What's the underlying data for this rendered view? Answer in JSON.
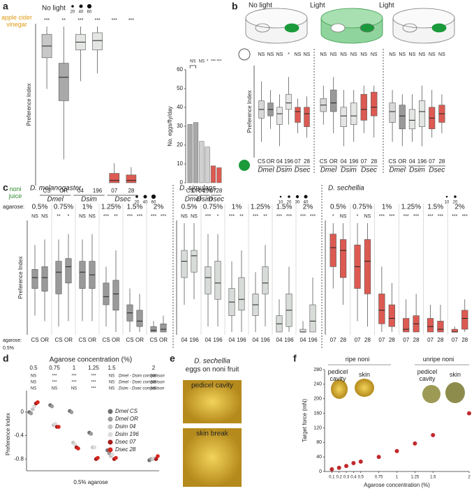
{
  "chart_data": [
    {
      "type": "box",
      "panel": "a",
      "ylabel": "Preference Index",
      "top_label": "apple cider vinegar",
      "bottom_label": "noni juice",
      "size_legend": [
        20,
        40,
        60
      ],
      "groups": [
        "Dmel",
        "Dsim",
        "Dsec"
      ],
      "colors": [
        "#c8c8c8",
        "#a9a9a9",
        "#e3e6e3",
        "#e3e6e3",
        "#dc5a52",
        "#dc5a52"
      ],
      "ylim": [
        -1,
        1
      ],
      "panels": [
        {
          "title": "No light",
          "categories": [
            "CS",
            "OR",
            "04",
            "196",
            "07",
            "28"
          ],
          "significance": [
            "***",
            "**",
            "***",
            "***",
            "***",
            "***"
          ],
          "low": [
            0.2,
            -0.7,
            0.3,
            0.4,
            -1,
            -1
          ],
          "q1": [
            0.6,
            0.05,
            0.7,
            0.7,
            -1,
            -1
          ],
          "median": [
            0.75,
            0.35,
            0.8,
            0.82,
            -0.97,
            -0.97
          ],
          "q3": [
            0.9,
            0.53,
            0.9,
            0.92,
            -0.88,
            -0.9
          ],
          "high": [
            1,
            1,
            1,
            1,
            -0.75,
            -0.8
          ]
        }
      ]
    },
    {
      "type": "bar",
      "ylabel": "No. eggs/fly/day",
      "categories": [
        "CS",
        "OR",
        "04",
        "196",
        "07",
        "28"
      ],
      "groups": [
        "Dmel",
        "Dsim",
        "Dsec"
      ],
      "values": [
        31,
        32,
        22,
        19,
        9,
        8
      ],
      "colors": [
        "#a9a9a9",
        "#a9a9a9",
        "#d0d0d0",
        "#d0d0d0",
        "#dc5a52",
        "#dc5a52"
      ],
      "ylim": [
        0,
        60
      ],
      "yticks": [
        0,
        10,
        20,
        30,
        40,
        50,
        60
      ],
      "significance": [
        "NS",
        "NS",
        "*",
        "***",
        "***"
      ]
    },
    {
      "type": "box",
      "panel": "b",
      "ylabel": "Preference Index",
      "groups": [
        "Dmel",
        "Dsim",
        "Dsec"
      ],
      "colors": [
        "#d8d8d8",
        "#9a9a9a",
        "#e3e6e3",
        "#e3e6e3",
        "#dc5a52",
        "#dc5a52"
      ],
      "ylim": [
        -1,
        1
      ],
      "panels": [
        {
          "title": "No light",
          "categories": [
            "CS",
            "OR",
            "04",
            "196",
            "07",
            "28"
          ],
          "significance": [
            "NS",
            "NS",
            "NS",
            "*",
            "NS",
            "NS"
          ],
          "low": [
            -0.7,
            -0.4,
            -0.8,
            -0.3,
            -0.5,
            -0.6
          ],
          "q1": [
            -0.15,
            -0.1,
            -0.3,
            0.05,
            -0.25,
            -0.35
          ],
          "median": [
            0.05,
            0.05,
            -0.05,
            0.2,
            0,
            -0.05
          ],
          "q3": [
            0.25,
            0.2,
            0.1,
            0.4,
            0.1,
            0.1
          ],
          "high": [
            0.7,
            0.5,
            0.4,
            0.8,
            0.3,
            0.35
          ]
        },
        {
          "title": "Light",
          "categories": [
            "CS",
            "OR",
            "04",
            "196",
            "07",
            "28"
          ],
          "significance": [
            "NS",
            "NS",
            "NS",
            "NS",
            "NS",
            "NS"
          ],
          "low": [
            -0.3,
            -0.5,
            -0.8,
            -0.7,
            -0.5,
            -0.6
          ],
          "q1": [
            0,
            0,
            -0.35,
            -0.3,
            -0.2,
            -0.1
          ],
          "median": [
            0.15,
            0.2,
            -0.1,
            -0.1,
            0.05,
            0.1
          ],
          "q3": [
            0.3,
            0.5,
            0.1,
            0.2,
            0.4,
            0.45
          ],
          "high": [
            0.6,
            0.8,
            0.5,
            0.5,
            0.6,
            0.6
          ]
        },
        {
          "title": "Light",
          "categories": [
            "CS",
            "OR",
            "04",
            "196",
            "07",
            "28"
          ],
          "significance": [
            "NS",
            "NS",
            "NS",
            "NS",
            "NS",
            "NS"
          ],
          "low": [
            -0.7,
            -0.8,
            -0.7,
            -0.8,
            -0.6,
            -0.5
          ],
          "q1": [
            -0.25,
            -0.4,
            -0.4,
            -0.35,
            -0.4,
            -0.25
          ],
          "median": [
            0,
            -0.1,
            -0.2,
            0,
            -0.15,
            -0.05
          ],
          "q3": [
            0.2,
            0.15,
            0.05,
            0.25,
            0.1,
            0.15
          ],
          "high": [
            0.5,
            0.4,
            0.4,
            0.6,
            0.5,
            0.4
          ]
        }
      ]
    },
    {
      "type": "box",
      "panel": "c",
      "title": "D. melanogaster",
      "ylabel": "Preference Index",
      "row_label": "agarose:",
      "bottom_note": [
        "agarose:",
        "0.5%"
      ],
      "size_legend": [
        20,
        40,
        60
      ],
      "color": "#9a9a9a",
      "ylim": [
        -1,
        1
      ],
      "panels": [
        {
          "title": "0.5%",
          "categories": [
            "CS",
            "OR"
          ],
          "significance": [
            "NS",
            "NS"
          ],
          "low": [
            -0.7,
            -0.8
          ],
          "q1": [
            -0.2,
            -0.25
          ],
          "median": [
            0,
            0
          ],
          "q3": [
            0.15,
            0.2
          ],
          "high": [
            0.6,
            0.7
          ]
        },
        {
          "title": "0.75%",
          "categories": [
            "CS",
            "OR"
          ],
          "significance": [
            "**",
            "*"
          ],
          "low": [
            -0.9,
            -0.8
          ],
          "q1": [
            -0.3,
            -0.1
          ],
          "median": [
            0.1,
            0.2
          ],
          "q3": [
            0.3,
            0.35
          ],
          "high": [
            0.7,
            0.8
          ]
        },
        {
          "title": "1%",
          "categories": [
            "CS",
            "OR"
          ],
          "significance": [
            "NS",
            "NS"
          ],
          "low": [
            -0.8,
            -0.8
          ],
          "q1": [
            -0.2,
            -0.2
          ],
          "median": [
            0.1,
            0.05
          ],
          "q3": [
            0.3,
            0.3
          ],
          "high": [
            0.7,
            0.8
          ]
        },
        {
          "title": "1.25%",
          "categories": [
            "CS",
            "OR"
          ],
          "significance": [
            "***",
            "**"
          ],
          "low": [
            -0.9,
            -1
          ],
          "q1": [
            -0.5,
            -0.6
          ],
          "median": [
            -0.35,
            -0.3
          ],
          "q3": [
            -0.1,
            -0.05
          ],
          "high": [
            0.2,
            0.5
          ]
        },
        {
          "title": "1.5%",
          "categories": [
            "CS",
            "OR"
          ],
          "significance": [
            "***",
            "***"
          ],
          "low": [
            -1,
            -1
          ],
          "q1": [
            -0.8,
            -0.9
          ],
          "median": [
            -0.65,
            -0.8
          ],
          "q3": [
            -0.5,
            -0.6
          ],
          "high": [
            -0.2,
            -0.3
          ]
        },
        {
          "title": "2%",
          "categories": [
            "CS",
            "OR"
          ],
          "significance": [
            "***",
            "***"
          ],
          "low": [
            -1,
            -1
          ],
          "q1": [
            -1,
            -1
          ],
          "median": [
            -0.97,
            -0.95
          ],
          "q3": [
            -0.9,
            -0.85
          ],
          "high": [
            -0.8,
            -0.7
          ]
        }
      ]
    },
    {
      "type": "box",
      "title": "D. simulans",
      "size_legend": [
        10,
        20,
        30,
        40
      ],
      "color": "#d8dcd8",
      "ylim": [
        -1,
        1
      ],
      "panels": [
        {
          "title": "0.5%",
          "categories": [
            "04",
            "196"
          ],
          "significance": [
            "NS",
            "NS"
          ],
          "low": [
            -0.5,
            -0.4
          ],
          "q1": [
            0,
            0.1
          ],
          "median": [
            0.3,
            0.4
          ],
          "q3": [
            0.5,
            0.5
          ],
          "high": [
            1,
            1
          ]
        },
        {
          "title": "0.75%",
          "categories": [
            "04",
            "196"
          ],
          "significance": [
            "***",
            "*"
          ],
          "low": [
            -0.9,
            -0.9
          ],
          "q1": [
            -0.3,
            -0.4
          ],
          "median": [
            0,
            -0.1
          ],
          "q3": [
            0.2,
            0.3
          ],
          "high": [
            0.8,
            0.8
          ]
        },
        {
          "title": "1%",
          "categories": [
            "04",
            "196"
          ],
          "significance": [
            "***",
            "**"
          ],
          "low": [
            -1,
            -1
          ],
          "q1": [
            -0.7,
            -0.6
          ],
          "median": [
            -0.45,
            -0.4
          ],
          "q3": [
            -0.2,
            0
          ],
          "high": [
            0.3,
            0.5
          ]
        },
        {
          "title": "1.25%",
          "categories": [
            "04",
            "196"
          ],
          "significance": [
            "***",
            "**"
          ],
          "low": [
            -1,
            -0.9
          ],
          "q1": [
            -0.7,
            -0.3
          ],
          "median": [
            -0.5,
            -0.1
          ],
          "q3": [
            -0.3,
            0.2
          ],
          "high": [
            0.1,
            0.6
          ]
        },
        {
          "title": "1.5%",
          "categories": [
            "04",
            "196"
          ],
          "significance": [
            "***",
            "***"
          ],
          "low": [
            -1,
            -1
          ],
          "q1": [
            -1,
            -0.9
          ],
          "median": [
            -0.85,
            -0.6
          ],
          "q3": [
            -0.7,
            -0.3
          ],
          "high": [
            -0.4,
            0.2
          ]
        },
        {
          "title": "2%",
          "categories": [
            "04",
            "196"
          ],
          "significance": [
            "***",
            "***"
          ],
          "low": [
            -1,
            -1
          ],
          "q1": [
            -1,
            -1
          ],
          "median": [
            -1,
            -0.8
          ],
          "q3": [
            -0.95,
            -0.5
          ],
          "high": [
            -0.8,
            0
          ]
        }
      ]
    },
    {
      "type": "box",
      "title": "D. sechellia",
      "size_legend": [
        10,
        20
      ],
      "color": "#dc5a52",
      "ylim": [
        -1,
        1
      ],
      "panels": [
        {
          "title": "0.5%",
          "categories": [
            "07",
            "28"
          ],
          "significance": [
            "*",
            "NS"
          ],
          "low": [
            -0.2,
            -0.5
          ],
          "q1": [
            0.2,
            0
          ],
          "median": [
            0.55,
            0.5
          ],
          "q3": [
            0.8,
            0.7
          ],
          "high": [
            1,
            1
          ]
        },
        {
          "title": "0.75%",
          "categories": [
            "07",
            "28"
          ],
          "significance": [
            "*",
            "NS"
          ],
          "low": [
            -0.8,
            -0.9
          ],
          "q1": [
            -0.2,
            -0.3
          ],
          "median": [
            0.2,
            0.3
          ],
          "q3": [
            0.6,
            0.7
          ],
          "high": [
            1,
            1
          ]
        },
        {
          "title": "1%",
          "categories": [
            "07",
            "28"
          ],
          "significance": [
            "***",
            "***"
          ],
          "low": [
            -1,
            -1
          ],
          "q1": [
            -0.85,
            -0.9
          ],
          "median": [
            -0.6,
            -0.75
          ],
          "q3": [
            -0.3,
            -0.5
          ],
          "high": [
            0.2,
            -0.1
          ]
        },
        {
          "title": "1.25%",
          "categories": [
            "07",
            "28"
          ],
          "significance": [
            "***",
            "***"
          ],
          "low": [
            -1,
            -1
          ],
          "q1": [
            -1,
            -1
          ],
          "median": [
            -0.95,
            -0.85
          ],
          "q3": [
            -0.75,
            -0.7
          ],
          "high": [
            -0.4,
            -0.3
          ]
        },
        {
          "title": "1.5%",
          "categories": [
            "07",
            "28"
          ],
          "significance": [
            "***",
            "***"
          ],
          "low": [
            -1,
            -1
          ],
          "q1": [
            -1,
            -1
          ],
          "median": [
            -0.9,
            -0.95
          ],
          "q3": [
            -0.75,
            -0.8
          ],
          "high": [
            -0.5,
            -0.5
          ]
        },
        {
          "title": "2%",
          "categories": [
            "07",
            "28"
          ],
          "significance": [
            "***",
            "***"
          ],
          "low": [
            -1,
            -1
          ],
          "q1": [
            -1,
            -0.95
          ],
          "median": [
            -1,
            -0.75
          ],
          "q3": [
            -0.95,
            -0.6
          ],
          "high": [
            -0.9,
            -0.4
          ]
        }
      ]
    },
    {
      "type": "dot",
      "panel": "d",
      "xlabel": "Agarose concentration (%)",
      "ylabel": "Preference Index",
      "note": "0.5% agarose",
      "categories": [
        "0.5",
        "0.75",
        "1",
        "1.25",
        "1.5",
        "2"
      ],
      "ylim": [
        -1,
        0.25
      ],
      "yticks": [
        0,
        -0.4,
        -0.8
      ],
      "comparisons": [
        {
          "name": "Dmel - Dsim comparison",
          "values": [
            "NS",
            "***",
            "***",
            "***",
            "NS",
            "NS"
          ]
        },
        {
          "name": "Dmel - Dsec comparison",
          "values": [
            "NS",
            "***",
            "***",
            "***",
            "NS",
            "NS"
          ]
        },
        {
          "name": "Dsim - Dsec comparison",
          "values": [
            "NS",
            "NS",
            "NS",
            "***",
            "NS",
            "NS"
          ]
        }
      ],
      "series": [
        {
          "name": "Dmel CS",
          "color": "#6e6e6e",
          "values": [
            0,
            0.12,
            0.02,
            -0.35,
            -0.65,
            -0.82
          ]
        },
        {
          "name": "Dmel OR",
          "color": "#9a9a9a",
          "values": [
            -0.02,
            0.1,
            0,
            -0.37,
            -0.7,
            -0.8
          ]
        },
        {
          "name": "Dsim 04",
          "color": "#c4c4c4",
          "values": [
            0.05,
            -0.22,
            -0.52,
            -0.6,
            -0.75,
            -0.8
          ]
        },
        {
          "name": "Dsim 196",
          "color": "#dcdcdc",
          "values": [
            0.1,
            -0.2,
            -0.55,
            -0.6,
            -0.72,
            -0.78
          ]
        },
        {
          "name": "Dsec 07",
          "color": "#a51d1d",
          "values": [
            0.15,
            -0.25,
            -0.6,
            -0.8,
            -0.8,
            -0.8
          ]
        },
        {
          "name": "Dsec 28",
          "color": "#d7261e",
          "values": [
            0.17,
            -0.25,
            -0.62,
            -0.78,
            -0.78,
            -0.75
          ]
        }
      ]
    },
    {
      "type": "image",
      "panel": "e",
      "title": "D. sechellia",
      "subtitle": "eggs on noni fruit",
      "images": [
        "pedicel cavity",
        "skin break"
      ]
    },
    {
      "type": "scatter",
      "panel": "f",
      "xlabel": "Agarose concentration (%)",
      "ylabel": "Target force (mN)",
      "x": [
        0.1,
        0.2,
        0.3,
        0.4,
        0.5,
        0.75,
        1,
        1.25,
        1.5,
        2
      ],
      "values": [
        6,
        10,
        15,
        23,
        27,
        40,
        56,
        77,
        100,
        160
      ],
      "color": "#c0282d",
      "xlim": [
        0,
        2
      ],
      "xticks": [
        0.1,
        0.2,
        0.3,
        0.4,
        0.5,
        0.75,
        1,
        1.25,
        1.5,
        2
      ],
      "ylim": [
        0,
        280
      ],
      "yticks": [
        0,
        40,
        80,
        120,
        160,
        200,
        240,
        280
      ],
      "annotations": [
        "ripe noni",
        "pedicel cavity",
        "skin",
        "unripe noni",
        "pedicel cavity",
        "skin"
      ]
    }
  ]
}
